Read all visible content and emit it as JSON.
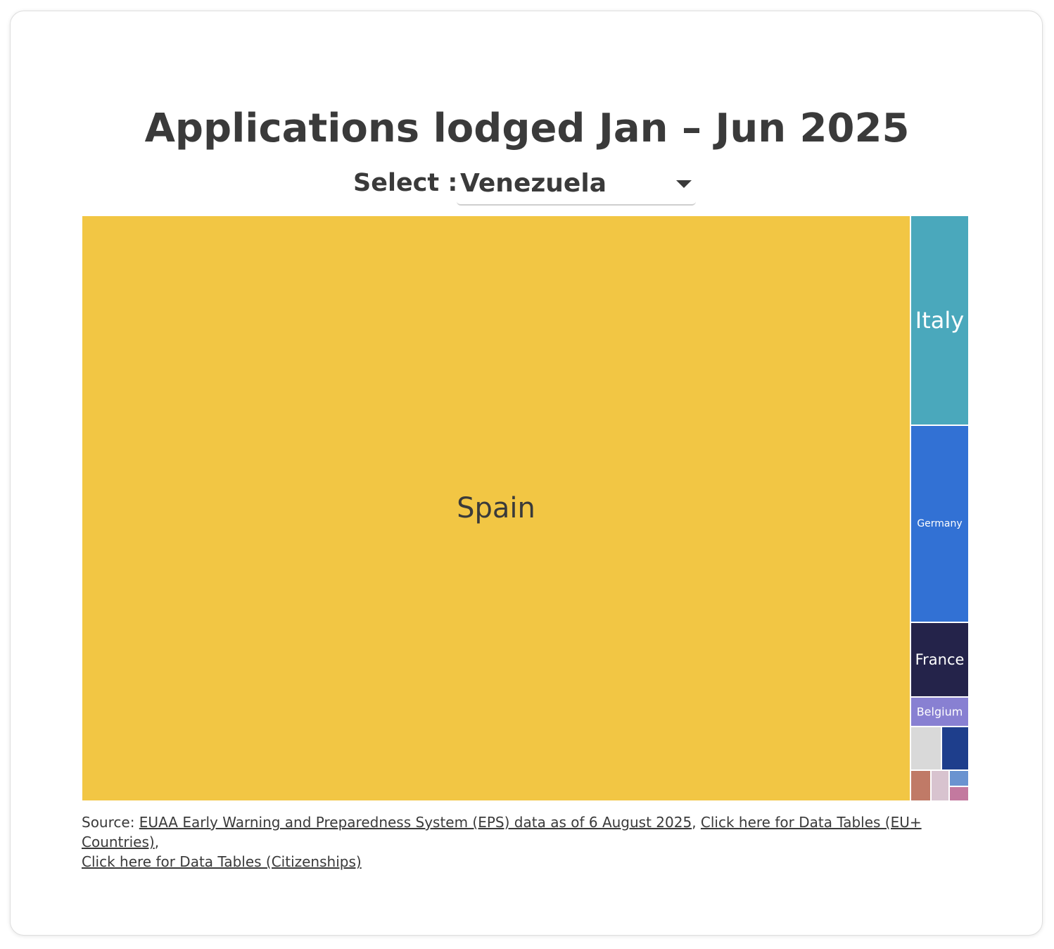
{
  "title": "Applications lodged Jan – Jun 2025",
  "selector": {
    "label": "Select :",
    "value": "Venezuela"
  },
  "colors": {
    "text": "#3a3a3a",
    "border": "#ffffff"
  },
  "chart_data": {
    "type": "treemap",
    "title": "Applications lodged Jan – Jun 2025",
    "items": [
      {
        "name": "Spain",
        "value": 93.3,
        "color": "#f2c644",
        "label": "Spain",
        "label_color": "#3a3a3a"
      },
      {
        "name": "Italy",
        "value": 2.35,
        "color": "#4aa8bc",
        "label": "Italy",
        "label_color": "#ffffff"
      },
      {
        "name": "Germany",
        "value": 2.22,
        "color": "#3271d4",
        "label": "Germany",
        "label_color": "#ffffff"
      },
      {
        "name": "France",
        "value": 0.84,
        "color": "#24234a",
        "label": "France",
        "label_color": "#ffffff"
      },
      {
        "name": "Belgium",
        "value": 0.33,
        "color": "#8880d2",
        "label": "Belgium",
        "label_color": "#ffffff"
      },
      {
        "name": "",
        "value": 0.28,
        "color": "#d9d9d9",
        "label": "",
        "label_color": "#ffffff"
      },
      {
        "name": "",
        "value": 0.25,
        "color": "#1e3e8c",
        "label": "",
        "label_color": "#ffffff"
      },
      {
        "name": "",
        "value": 0.12,
        "color": "#c07a67",
        "label": "",
        "label_color": "#ffffff"
      },
      {
        "name": "",
        "value": 0.11,
        "color": "#d8c3cf",
        "label": "",
        "label_color": "#ffffff"
      },
      {
        "name": "",
        "value": 0.09,
        "color": "#6a93d0",
        "label": "",
        "label_color": "#ffffff"
      },
      {
        "name": "",
        "value": 0.08,
        "color": "#c3799f",
        "label": "",
        "label_color": "#ffffff"
      }
    ]
  },
  "source": {
    "prefix": "Source: ",
    "link1": "EUAA Early Warning and Preparedness System (EPS) data as of 6 August 2025",
    "sep1": ", ",
    "link2": "Click here for Data Tables (EU+ Countries)",
    "sep2": ",",
    "link3": "Click here for Data Tables (Citizenships)"
  }
}
